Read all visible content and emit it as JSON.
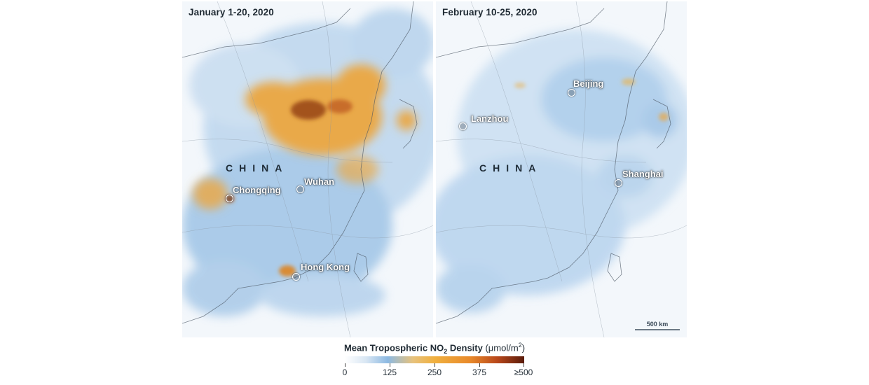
{
  "panels": {
    "left": {
      "title": "January 1-20, 2020",
      "country_label": "CHINA",
      "cities": [
        "Chongqing",
        "Wuhan",
        "Hong Kong"
      ]
    },
    "right": {
      "title": "February 10-25, 2020",
      "country_label": "CHINA",
      "cities": [
        "Beijing",
        "Lanzhou",
        "Shanghai"
      ],
      "scale_label": "500 km"
    }
  },
  "legend": {
    "title_main": "Mean Tropospheric NO",
    "title_sub": "2",
    "title_density": " Density ",
    "units": "(μmol/m",
    "units_sup": "2",
    "units_close": ")",
    "ticks": [
      "0",
      "125",
      "250",
      "375",
      "≥500"
    ],
    "colors": [
      "#ffffff",
      "#8cb9e2",
      "#f0b03f",
      "#e8892a",
      "#5a1b0a"
    ]
  }
}
